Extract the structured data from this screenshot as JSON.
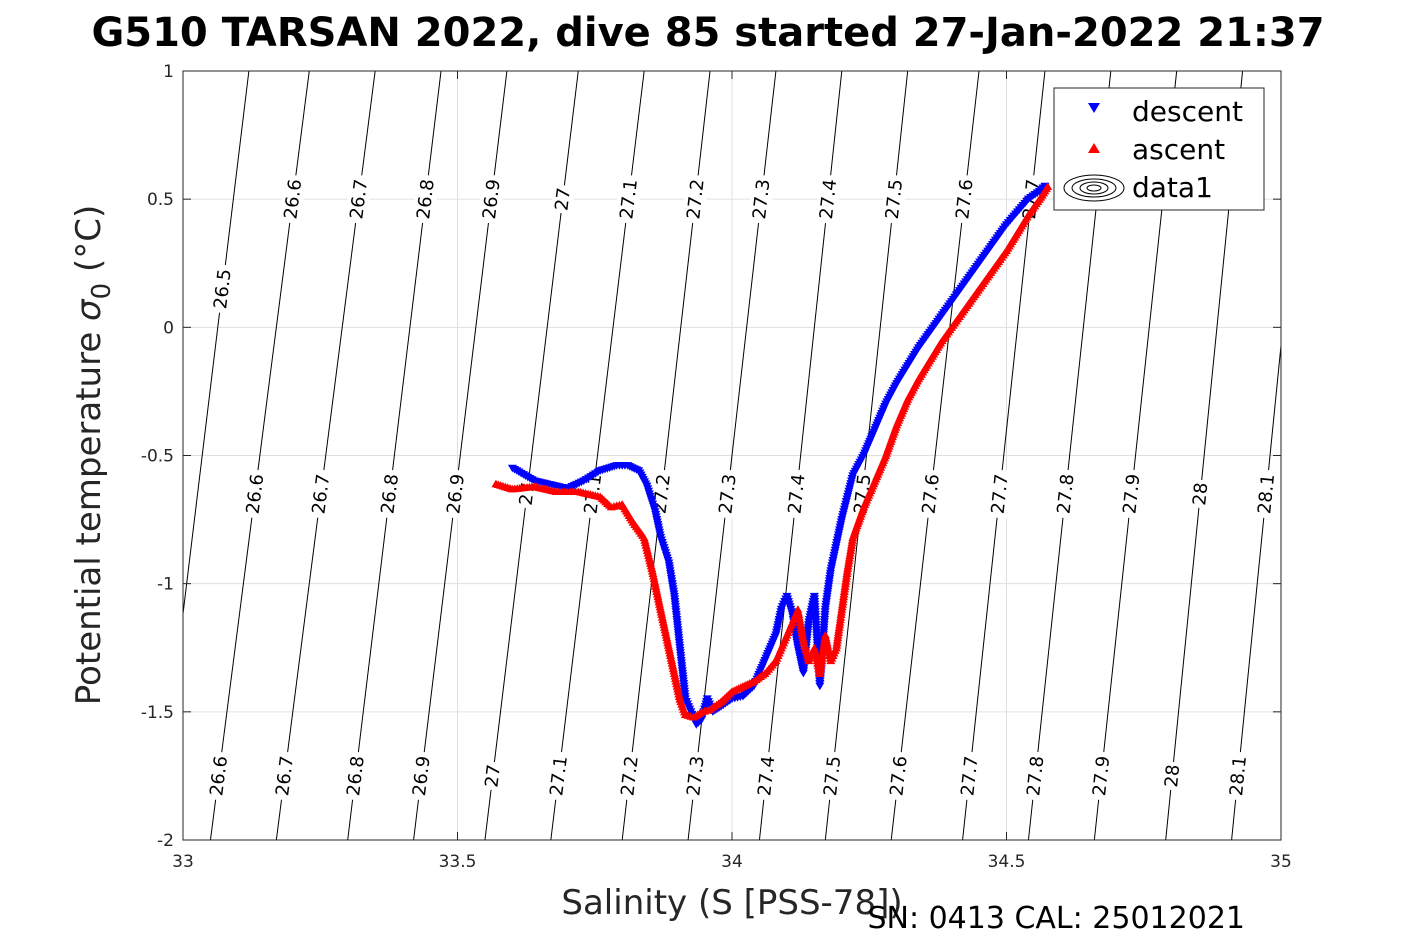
{
  "chart_data": {
    "type": "scatter",
    "title": "G510 TARSAN 2022, dive 85 started 27-Jan-2022 21:37",
    "xlabel": "Salinity (S [PSS-78])",
    "ylabel_main": "Potential temperature ",
    "ylabel_sigma": "σ",
    "ylabel_sub": "0",
    "ylabel_unit": " (°C)",
    "xlim": [
      33,
      35
    ],
    "ylim": [
      -2,
      1
    ],
    "x_ticks": [
      33,
      33.5,
      34,
      34.5,
      35
    ],
    "x_tick_labels": [
      "33",
      "33.5",
      "34",
      "34.5",
      "35"
    ],
    "y_ticks": [
      1,
      0.5,
      0,
      -0.5,
      -1,
      -1.5,
      -2
    ],
    "y_tick_labels": [
      "1",
      "0.5",
      "0",
      "-0.5",
      "-1",
      "-1.5",
      "-2"
    ],
    "grid": true,
    "legend_position": "top-right",
    "legend": [
      "descent",
      "ascent",
      "data1"
    ],
    "isopycnals": {
      "levels": [
        26.5,
        26.6,
        26.7,
        26.8,
        26.9,
        27,
        27.1,
        27.2,
        27.3,
        27.4,
        27.5,
        27.6,
        27.7,
        27.8,
        27.9,
        28,
        28.1
      ],
      "labels": [
        "26.5",
        "26.6",
        "26.7",
        "26.8",
        "26.9",
        "27",
        "27.1",
        "27.2",
        "27.3",
        "27.4",
        "27.5",
        "27.6",
        "27.7",
        "27.8",
        "27.9",
        "28",
        "28.1"
      ],
      "salinity_at_minus2": [
        32.95,
        33.05,
        33.17,
        33.3,
        33.42,
        33.55,
        33.67,
        33.8,
        33.92,
        34.05,
        34.17,
        34.29,
        34.42,
        34.54,
        34.66,
        34.79,
        34.91
      ],
      "salinity_at_plus1": [
        33.12,
        33.23,
        33.35,
        33.47,
        33.59,
        33.72,
        33.84,
        33.96,
        34.08,
        34.2,
        34.32,
        34.45,
        34.57,
        34.69,
        34.81,
        34.93,
        35.05
      ],
      "label_rows": [
        {
          "temperature": 0.5,
          "levels": [
            "26.6",
            "26.7",
            "26.8",
            "26.9",
            "27",
            "27.1",
            "27.2",
            "27.3",
            "27.4",
            "27.5",
            "27.6",
            "27.7"
          ]
        },
        {
          "temperature": -0.65,
          "levels": [
            "26.6",
            "26.7",
            "26.8",
            "26.9",
            "27",
            "27.1",
            "27.2",
            "27.3",
            "27.4",
            "27.5",
            "27.6",
            "27.7",
            "27.8",
            "27.9",
            "28",
            "28.1"
          ]
        },
        {
          "temperature": -1.75,
          "levels": [
            "26.6",
            "26.7",
            "26.8",
            "26.9",
            "27",
            "27.1",
            "27.2",
            "27.3",
            "27.4",
            "27.5",
            "27.6",
            "27.7",
            "27.8",
            "27.9",
            "28",
            "28.1"
          ]
        },
        {
          "temperature": 0.15,
          "levels": [
            "26.5"
          ]
        }
      ]
    },
    "series": [
      {
        "name": "descent",
        "marker": "triangle-down",
        "color": "#0000ff",
        "x": [
          33.6,
          33.64,
          33.68,
          33.7,
          33.73,
          33.76,
          33.79,
          33.81,
          33.83,
          33.845,
          33.86,
          33.87,
          33.885,
          33.895,
          33.905,
          33.915,
          33.925,
          33.935,
          33.945,
          33.955,
          33.965,
          33.98,
          34.0,
          34.02,
          34.04,
          34.06,
          34.08,
          34.09,
          34.1,
          34.11,
          34.12,
          34.13,
          34.14,
          34.15,
          34.16,
          34.17,
          34.18,
          34.19,
          34.2,
          34.22,
          34.24,
          34.26,
          34.28,
          34.3,
          34.32,
          34.34,
          34.36,
          34.38,
          34.4,
          34.42,
          34.44,
          34.46,
          34.48,
          34.5,
          34.52,
          34.54,
          34.56,
          34.57
        ],
        "y": [
          -0.55,
          -0.6,
          -0.62,
          -0.63,
          -0.6,
          -0.56,
          -0.54,
          -0.54,
          -0.56,
          -0.62,
          -0.72,
          -0.82,
          -0.92,
          -1.05,
          -1.25,
          -1.45,
          -1.5,
          -1.55,
          -1.53,
          -1.45,
          -1.5,
          -1.48,
          -1.45,
          -1.44,
          -1.4,
          -1.3,
          -1.2,
          -1.1,
          -1.05,
          -1.12,
          -1.25,
          -1.35,
          -1.15,
          -1.05,
          -1.4,
          -1.1,
          -0.95,
          -0.85,
          -0.75,
          -0.58,
          -0.5,
          -0.4,
          -0.3,
          -0.22,
          -0.15,
          -0.08,
          -0.02,
          0.04,
          0.1,
          0.16,
          0.22,
          0.28,
          0.34,
          0.4,
          0.45,
          0.5,
          0.53,
          0.55
        ]
      },
      {
        "name": "ascent",
        "marker": "triangle-up",
        "color": "#ff0000",
        "x": [
          33.57,
          33.6,
          33.64,
          33.68,
          33.72,
          33.76,
          33.78,
          33.8,
          33.82,
          33.84,
          33.855,
          33.87,
          33.885,
          33.895,
          33.905,
          33.915,
          33.93,
          33.945,
          33.96,
          33.98,
          34.0,
          34.02,
          34.04,
          34.06,
          34.08,
          34.09,
          34.1,
          34.11,
          34.12,
          34.13,
          34.14,
          34.15,
          34.16,
          34.17,
          34.18,
          34.19,
          34.2,
          34.21,
          34.22,
          34.24,
          34.26,
          34.28,
          34.3,
          34.32,
          34.34,
          34.36,
          34.38,
          34.4,
          34.42,
          34.44,
          34.46,
          34.48,
          34.5,
          34.52,
          34.54,
          34.56,
          34.575
        ],
        "y": [
          -0.61,
          -0.63,
          -0.62,
          -0.64,
          -0.64,
          -0.66,
          -0.7,
          -0.69,
          -0.76,
          -0.82,
          -0.95,
          -1.1,
          -1.25,
          -1.35,
          -1.45,
          -1.51,
          -1.52,
          -1.5,
          -1.49,
          -1.46,
          -1.42,
          -1.4,
          -1.38,
          -1.35,
          -1.3,
          -1.25,
          -1.2,
          -1.15,
          -1.1,
          -1.22,
          -1.3,
          -1.25,
          -1.35,
          -1.2,
          -1.3,
          -1.25,
          -1.1,
          -0.95,
          -0.82,
          -0.7,
          -0.6,
          -0.5,
          -0.38,
          -0.28,
          -0.2,
          -0.13,
          -0.06,
          0.0,
          0.06,
          0.12,
          0.18,
          0.24,
          0.3,
          0.37,
          0.44,
          0.5,
          0.55
        ]
      },
      {
        "name": "data1",
        "marker": "contour-ellipses",
        "color": "#000000",
        "x": [],
        "y": []
      }
    ]
  },
  "footer": {
    "serial": "SN: 0413  CAL: 25012021"
  },
  "colors": {
    "grid": "#e0e0e0",
    "axis": "#262626",
    "isopycnal": "#000000",
    "descent": "#0000ff",
    "ascent": "#ff0000"
  }
}
